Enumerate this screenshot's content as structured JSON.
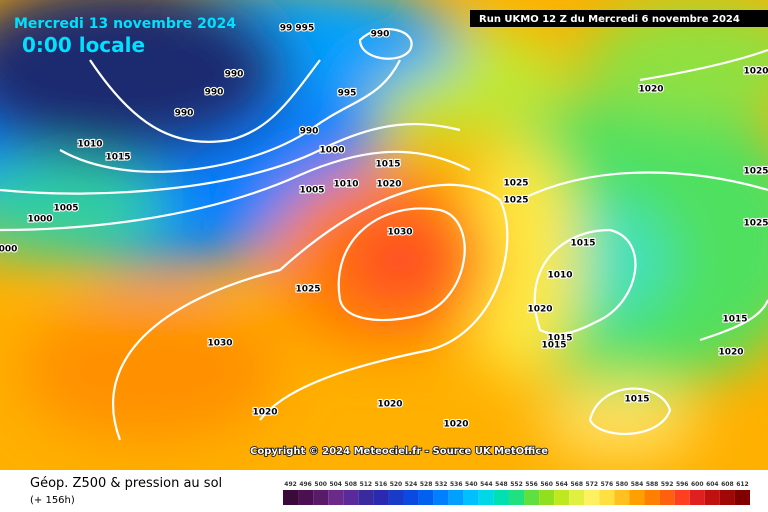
{
  "header": {
    "date": "Mercredi 13 novembre 2024",
    "time": "0:00 locale",
    "run": "Run UKMO 12 Z du Mercredi 6 novembre 2024"
  },
  "isobar_labels": [
    "990",
    "99 995",
    "990",
    "990",
    "990",
    "995",
    "990",
    "1000",
    "1010",
    "1015",
    "1015",
    "1005",
    "1010",
    "1020",
    "1005",
    "1000",
    "000",
    "1030",
    "1025",
    "1030",
    "1020",
    "1020",
    "1020",
    "1025",
    "1025",
    "1015",
    "1010",
    "1020",
    "1015",
    "1015",
    "1015",
    "1020",
    "1020",
    "1025",
    "1025",
    "1015",
    "1020"
  ],
  "copyright": "Copyright © 2024 Meteociel.fr - Source UK MetOffice",
  "footer": {
    "title": "Géop. Z500 & pression au sol",
    "lead": "(+ 156h)"
  },
  "legend": {
    "labels": [
      "492",
      "496",
      "500",
      "504",
      "508",
      "512",
      "516",
      "520",
      "524",
      "528",
      "532",
      "536",
      "540",
      "544",
      "548",
      "552",
      "556",
      "560",
      "564",
      "568",
      "572",
      "576",
      "580",
      "584",
      "588",
      "592",
      "596",
      "600",
      "604",
      "608",
      "612"
    ],
    "colors": [
      "#3a0a3a",
      "#4a1050",
      "#5a1a6a",
      "#6a2a8a",
      "#5a2a9a",
      "#3a2aa0",
      "#2a2ab0",
      "#1a3ac8",
      "#0a4ae0",
      "#0060f0",
      "#0080ff",
      "#00a0ff",
      "#00c0ff",
      "#00d8e8",
      "#00e0b0",
      "#20e080",
      "#60e040",
      "#90e020",
      "#c0e820",
      "#e0f040",
      "#fff060",
      "#ffe040",
      "#ffc020",
      "#ffa000",
      "#ff8000",
      "#ff6010",
      "#ff4020",
      "#e02020",
      "#c01010",
      "#a00808",
      "#800000"
    ]
  }
}
